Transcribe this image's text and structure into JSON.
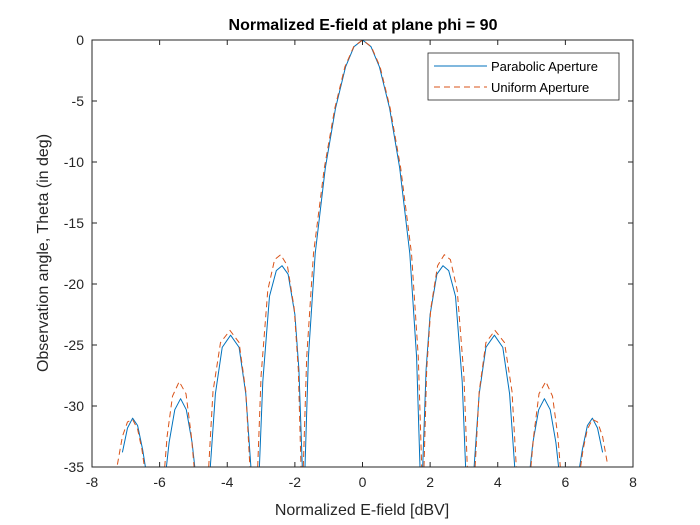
{
  "chart_data": {
    "type": "line",
    "title": "Normalized E-field at plane phi = 90",
    "xlabel": "Normalized E-field [dBV]",
    "ylabel": "Observation angle, Theta (in deg)",
    "xlim": [
      -8,
      8
    ],
    "ylim": [
      -35,
      0
    ],
    "xticks": [
      "-8",
      "-6",
      "-4",
      "-2",
      "0",
      "2",
      "4",
      "6",
      "8"
    ],
    "yticks": [
      "0",
      "-5",
      "-10",
      "-15",
      "-20",
      "-25",
      "-30",
      "-35"
    ],
    "grid": false,
    "legend_position": "top-right",
    "series": [
      {
        "name": "Parabolic Aperture",
        "color": "#0072BD",
        "style": "solid",
        "segments": [
          [
            [
              -7.1,
              -33.8
            ],
            [
              -6.95,
              -31.8
            ],
            [
              -6.8,
              -31.0
            ],
            [
              -6.65,
              -31.6
            ],
            [
              -6.5,
              -33.6
            ],
            [
              -6.42,
              -35.0
            ]
          ],
          [
            [
              -5.8,
              -35.0
            ],
            [
              -5.72,
              -33.0
            ],
            [
              -5.55,
              -30.3
            ],
            [
              -5.38,
              -29.4
            ],
            [
              -5.21,
              -30.3
            ],
            [
              -5.04,
              -33.0
            ],
            [
              -4.96,
              -35.0
            ]
          ],
          [
            [
              -4.5,
              -35.0
            ],
            [
              -4.35,
              -29.0
            ],
            [
              -4.15,
              -25.2
            ],
            [
              -3.9,
              -24.2
            ],
            [
              -3.65,
              -25.2
            ],
            [
              -3.45,
              -29.0
            ],
            [
              -3.3,
              -35.0
            ]
          ],
          [
            [
              -3.05,
              -35.0
            ],
            [
              -2.95,
              -28.0
            ],
            [
              -2.75,
              -21.0
            ],
            [
              -2.55,
              -18.9
            ],
            [
              -2.38,
              -18.5
            ],
            [
              -2.2,
              -19.2
            ],
            [
              -2.0,
              -22.5
            ],
            [
              -1.88,
              -27.0
            ],
            [
              -1.78,
              -35.0
            ]
          ],
          [
            [
              -1.7,
              -35.0
            ],
            [
              -1.6,
              -26.0
            ],
            [
              -1.4,
              -17.5
            ],
            [
              -1.1,
              -10.5
            ],
            [
              -0.8,
              -5.6
            ],
            [
              -0.5,
              -2.2
            ],
            [
              -0.25,
              -0.55
            ],
            [
              0.0,
              0.0
            ],
            [
              0.25,
              -0.55
            ],
            [
              0.5,
              -2.2
            ],
            [
              0.8,
              -5.6
            ],
            [
              1.1,
              -10.5
            ],
            [
              1.4,
              -17.5
            ],
            [
              1.6,
              -26.0
            ],
            [
              1.7,
              -35.0
            ]
          ],
          [
            [
              1.78,
              -35.0
            ],
            [
              1.88,
              -27.0
            ],
            [
              2.0,
              -22.5
            ],
            [
              2.2,
              -19.2
            ],
            [
              2.38,
              -18.5
            ],
            [
              2.55,
              -18.9
            ],
            [
              2.75,
              -21.0
            ],
            [
              2.95,
              -28.0
            ],
            [
              3.05,
              -35.0
            ]
          ],
          [
            [
              3.3,
              -35.0
            ],
            [
              3.45,
              -29.0
            ],
            [
              3.65,
              -25.2
            ],
            [
              3.9,
              -24.2
            ],
            [
              4.15,
              -25.2
            ],
            [
              4.35,
              -29.0
            ],
            [
              4.5,
              -35.0
            ]
          ],
          [
            [
              4.96,
              -35.0
            ],
            [
              5.04,
              -33.0
            ],
            [
              5.21,
              -30.3
            ],
            [
              5.38,
              -29.4
            ],
            [
              5.55,
              -30.3
            ],
            [
              5.72,
              -33.0
            ],
            [
              5.8,
              -35.0
            ]
          ],
          [
            [
              6.42,
              -35.0
            ],
            [
              6.5,
              -33.6
            ],
            [
              6.65,
              -31.6
            ],
            [
              6.8,
              -31.0
            ],
            [
              6.95,
              -31.8
            ],
            [
              7.1,
              -33.8
            ]
          ]
        ]
      },
      {
        "name": "Uniform Aperture",
        "color": "#D95319",
        "style": "dashed",
        "segments": [
          [
            [
              -7.25,
              -34.8
            ],
            [
              -7.1,
              -32.5
            ],
            [
              -6.95,
              -31.3
            ],
            [
              -6.8,
              -31.1
            ],
            [
              -6.65,
              -31.9
            ],
            [
              -6.52,
              -33.6
            ],
            [
              -6.45,
              -35.0
            ]
          ],
          [
            [
              -5.85,
              -35.0
            ],
            [
              -5.78,
              -32.5
            ],
            [
              -5.62,
              -29.2
            ],
            [
              -5.42,
              -28.0
            ],
            [
              -5.22,
              -29.0
            ],
            [
              -5.06,
              -32.5
            ],
            [
              -4.98,
              -35.0
            ]
          ],
          [
            [
              -4.55,
              -35.0
            ],
            [
              -4.42,
              -28.8
            ],
            [
              -4.2,
              -24.8
            ],
            [
              -3.92,
              -23.8
            ],
            [
              -3.65,
              -24.8
            ],
            [
              -3.45,
              -28.8
            ],
            [
              -3.33,
              -35.0
            ]
          ],
          [
            [
              -3.1,
              -35.0
            ],
            [
              -3.0,
              -27.5
            ],
            [
              -2.8,
              -20.5
            ],
            [
              -2.6,
              -18.0
            ],
            [
              -2.42,
              -17.6
            ],
            [
              -2.22,
              -18.5
            ],
            [
              -2.02,
              -22.0
            ],
            [
              -1.9,
              -27.0
            ],
            [
              -1.82,
              -35.0
            ]
          ],
          [
            [
              -1.75,
              -35.0
            ],
            [
              -1.65,
              -26.0
            ],
            [
              -1.45,
              -17.5
            ],
            [
              -1.13,
              -10.5
            ],
            [
              -0.82,
              -5.6
            ],
            [
              -0.52,
              -2.2
            ],
            [
              -0.26,
              -0.55
            ],
            [
              0.0,
              0.0
            ],
            [
              0.26,
              -0.55
            ],
            [
              0.52,
              -2.2
            ],
            [
              0.82,
              -5.6
            ],
            [
              1.13,
              -10.5
            ],
            [
              1.45,
              -17.5
            ],
            [
              1.65,
              -26.0
            ],
            [
              1.75,
              -35.0
            ]
          ],
          [
            [
              1.82,
              -35.0
            ],
            [
              1.9,
              -27.0
            ],
            [
              2.02,
              -22.0
            ],
            [
              2.22,
              -18.5
            ],
            [
              2.42,
              -17.6
            ],
            [
              2.6,
              -18.0
            ],
            [
              2.8,
              -20.5
            ],
            [
              3.0,
              -27.5
            ],
            [
              3.1,
              -35.0
            ]
          ],
          [
            [
              3.33,
              -35.0
            ],
            [
              3.45,
              -28.8
            ],
            [
              3.65,
              -24.8
            ],
            [
              3.92,
              -23.8
            ],
            [
              4.2,
              -24.8
            ],
            [
              4.42,
              -28.8
            ],
            [
              4.55,
              -35.0
            ]
          ],
          [
            [
              4.98,
              -35.0
            ],
            [
              5.06,
              -32.5
            ],
            [
              5.22,
              -29.0
            ],
            [
              5.42,
              -28.0
            ],
            [
              5.62,
              -29.2
            ],
            [
              5.78,
              -32.5
            ],
            [
              5.85,
              -35.0
            ]
          ],
          [
            [
              6.45,
              -35.0
            ],
            [
              6.52,
              -33.6
            ],
            [
              6.65,
              -31.9
            ],
            [
              6.8,
              -31.1
            ],
            [
              6.95,
              -31.3
            ],
            [
              7.1,
              -32.5
            ],
            [
              7.25,
              -34.8
            ]
          ]
        ]
      }
    ]
  }
}
